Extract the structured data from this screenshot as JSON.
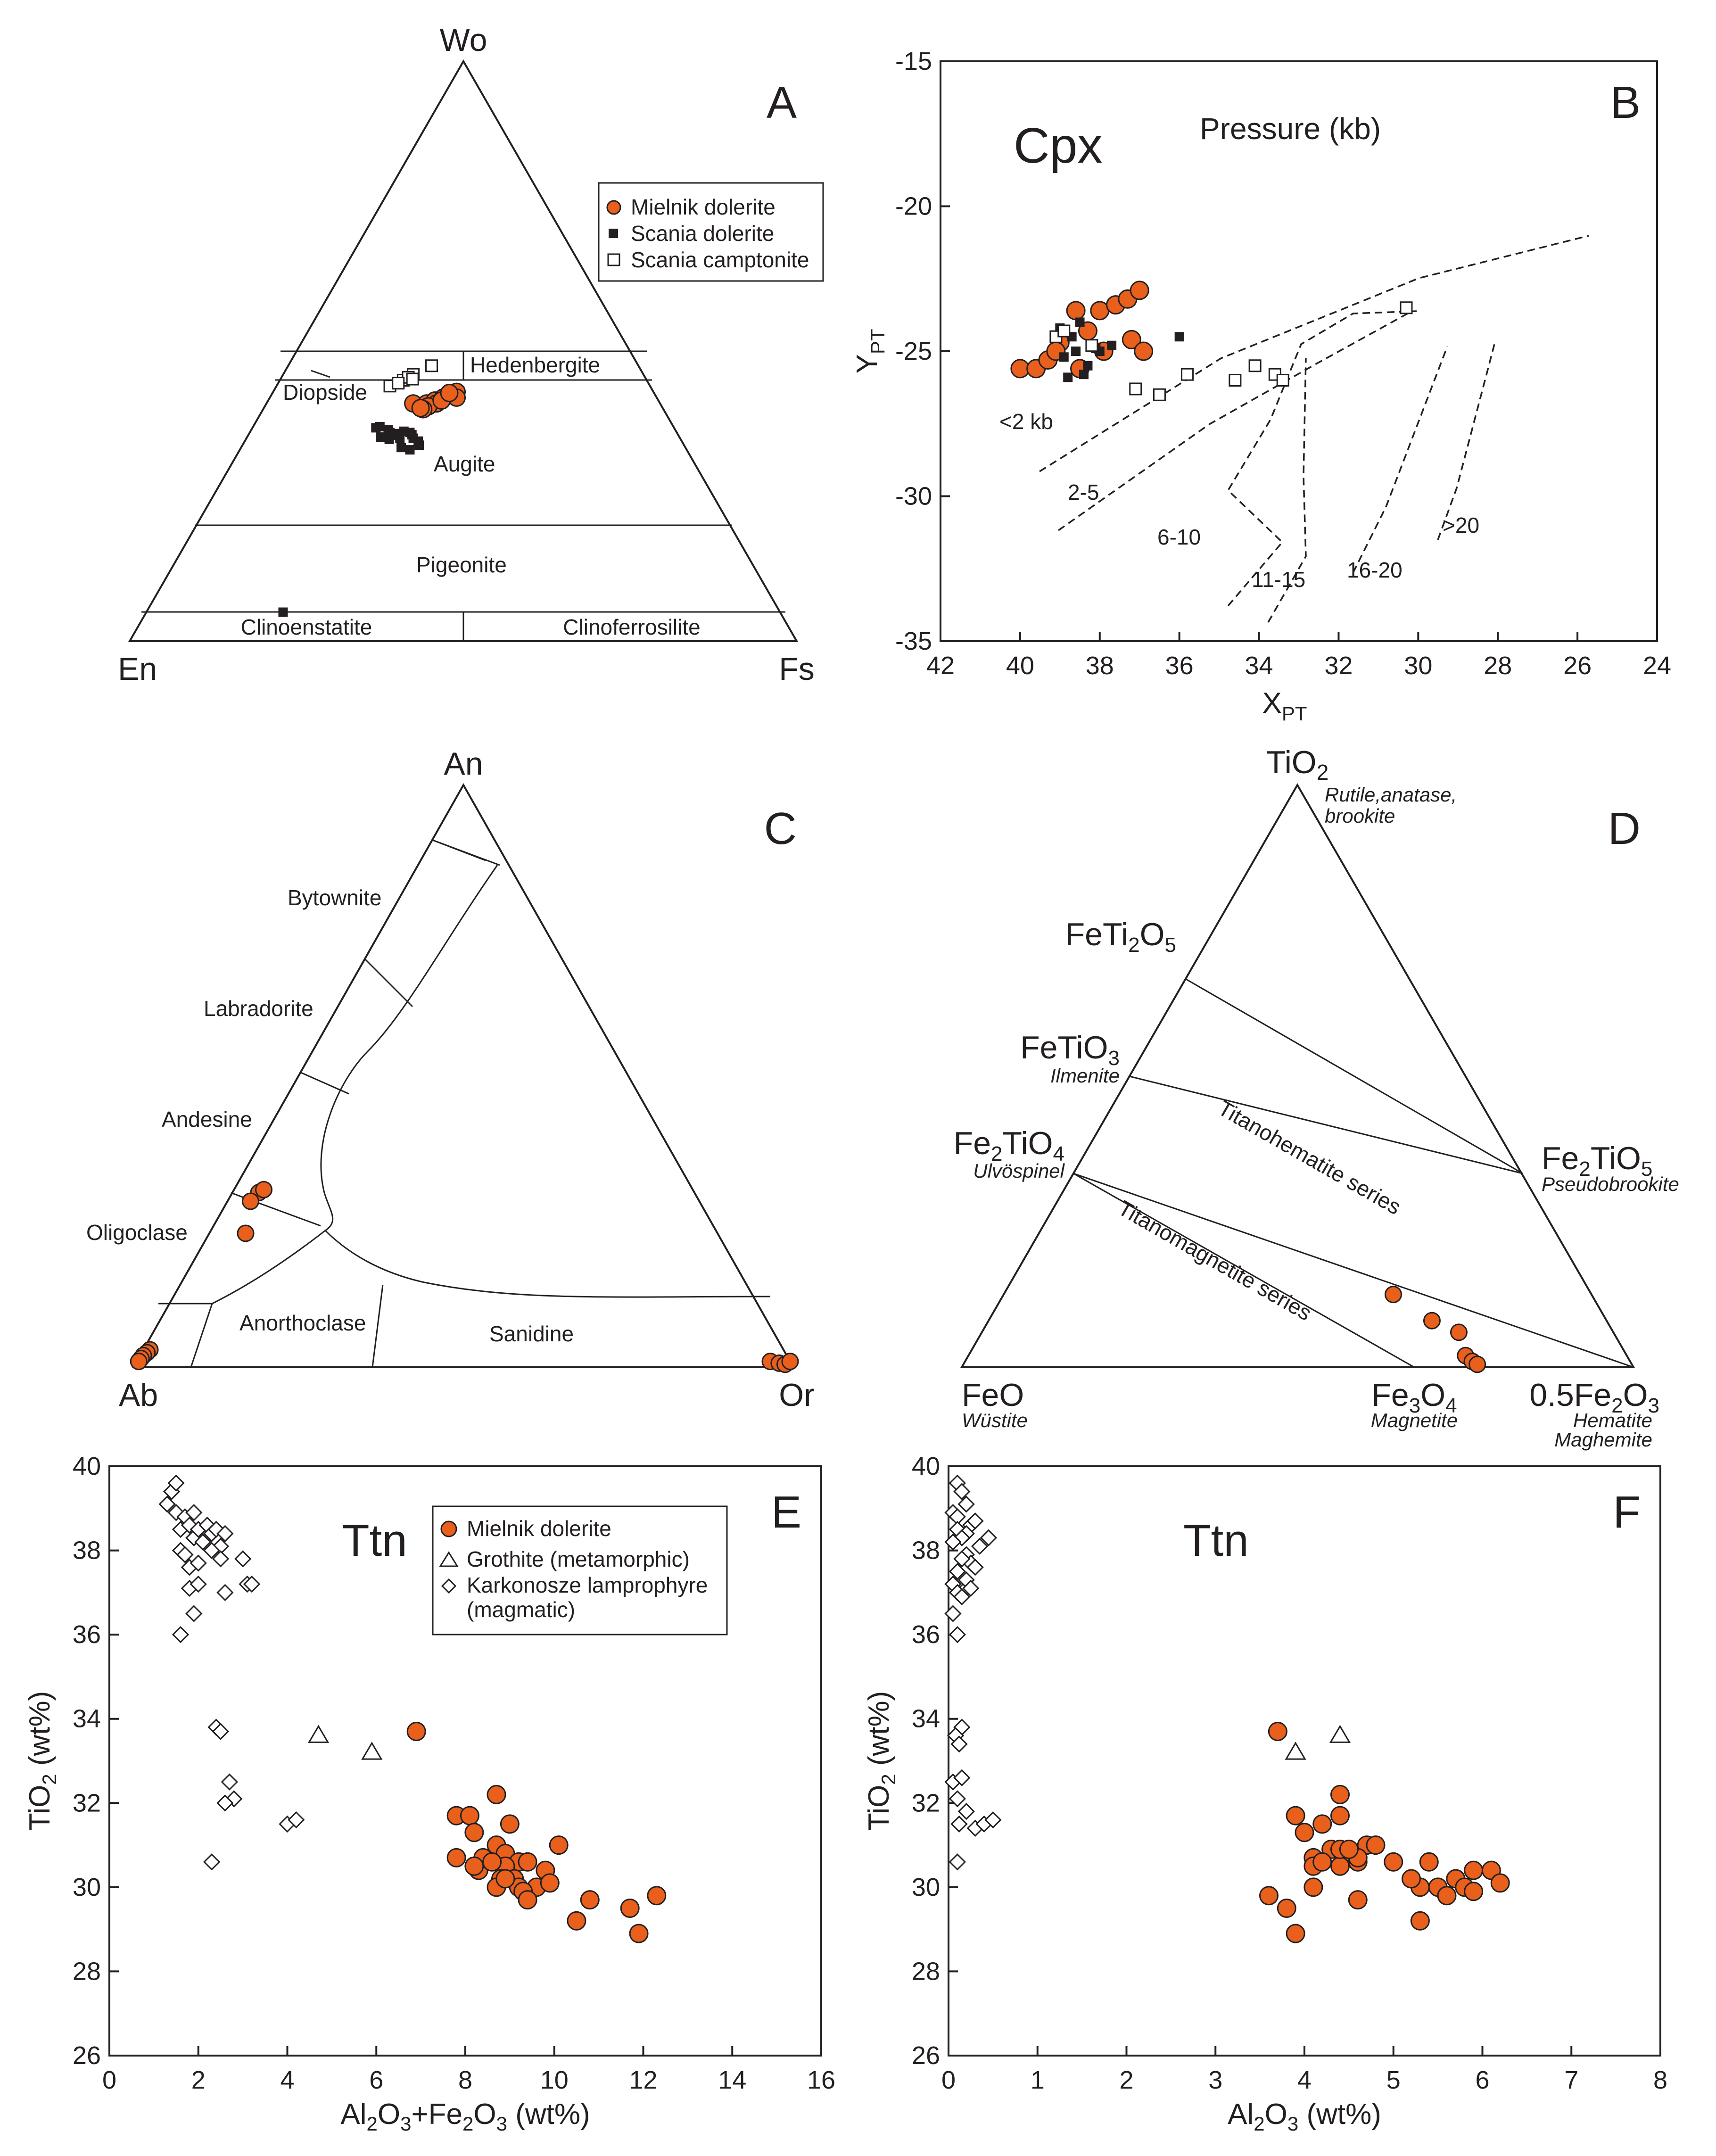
{
  "colors": {
    "mielnik": "#e8601c",
    "ink": "#231f20",
    "background": "#ffffff"
  },
  "panelA": {
    "letter": "A",
    "apex_top": "Wo",
    "apex_left": "En",
    "apex_right": "Fs",
    "legend": [
      "Mielnik dolerite",
      "Scania dolerite",
      "Scania camptonite"
    ],
    "fields": {
      "hedenbergite": "Hedenbergite",
      "diopside": "Diopside",
      "augite": "Augite",
      "pigeonite": "Pigeonite",
      "clinoenstatite": "Clinoenstatite",
      "clinoferrosilite": "Clinoferrosilite"
    }
  },
  "panelB": {
    "letter": "B",
    "mineral": "Cpx",
    "pressure_title": "Pressure (kb)",
    "xlabel": "X",
    "xlabel_sub": "PT",
    "ylabel": "Y",
    "ylabel_sub": "PT",
    "xticks": [
      "42",
      "40",
      "38",
      "36",
      "34",
      "32",
      "30",
      "28",
      "26",
      "24"
    ],
    "yticks": [
      "-15",
      "-20",
      "-25",
      "-30",
      "-35"
    ],
    "zones": [
      "<2 kb",
      "2-5",
      "6-10",
      "11-15",
      "16-20",
      ">20"
    ]
  },
  "panelC": {
    "letter": "C",
    "apex_top": "An",
    "apex_left": "Ab",
    "apex_right": "Or",
    "fields": {
      "bytownite": "Bytownite",
      "labradorite": "Labradorite",
      "andesine": "Andesine",
      "oligoclase": "Oligoclase",
      "anorthoclase": "Anorthoclase",
      "sanidine": "Sanidine"
    }
  },
  "panelD": {
    "letter": "D",
    "top": {
      "pre": "TiO",
      "sub": "2",
      "mineral": "Rutile,anatase,",
      "mineral2": "brookite"
    },
    "feti2o5": {
      "a": "FeTi",
      "b": "2",
      "c": "O",
      "d": "5"
    },
    "fetio3": {
      "a": "FeTiO",
      "b": "3",
      "mineral": "Ilmenite"
    },
    "fe2tio4": {
      "a": "Fe",
      "b": "2",
      "c": "TiO",
      "d": "4",
      "mineral": "Ulvöspinel"
    },
    "fe2tio5": {
      "a": "Fe",
      "b": "2",
      "c": "TiO",
      "d": "5",
      "mineral": "Pseudobrookite"
    },
    "feo": {
      "a": "FeO",
      "mineral": "Wüstite"
    },
    "fe3o4": {
      "a": "Fe",
      "b": "3",
      "c": "O",
      "d": "4",
      "mineral": "Magnetite"
    },
    "fe2o3": {
      "a": "0.5Fe",
      "b": "2",
      "c": "O",
      "d": "3",
      "mineral": "Hematite",
      "mineral2": "Maghemite"
    },
    "series": {
      "titanohematite": "Titanohematite series",
      "titanomagnetite": "Titanomagnetite series"
    }
  },
  "panelE": {
    "letter": "E",
    "mineral": "Ttn",
    "xlabel": {
      "a": "Al",
      "b": "2",
      "c": "O",
      "d": "3",
      "e": "+Fe",
      "f": "2",
      "g": "O",
      "h": "3",
      "i": " (wt%)"
    },
    "ylabel": {
      "a": "TiO",
      "b": "2",
      "c": " (wt%)"
    },
    "xticks": [
      "0",
      "2",
      "4",
      "6",
      "8",
      "10",
      "12",
      "14",
      "16"
    ],
    "yticks": [
      "26",
      "28",
      "30",
      "32",
      "34",
      "36",
      "38",
      "40"
    ],
    "legend": [
      "Mielnik dolerite",
      "Grothite (metamorphic)",
      "Karkonosze lamprophyre",
      "(magmatic)"
    ]
  },
  "panelF": {
    "letter": "F",
    "mineral": "Ttn",
    "xlabel": {
      "a": "Al",
      "b": "2",
      "c": "O",
      "d": "3",
      "e": " (wt%)"
    },
    "ylabel": {
      "a": "TiO",
      "b": "2",
      "c": " (wt%)"
    },
    "xticks": [
      "0",
      "1",
      "2",
      "3",
      "4",
      "5",
      "6",
      "7",
      "8"
    ],
    "yticks": [
      "26",
      "28",
      "30",
      "32",
      "34",
      "36",
      "38",
      "40"
    ]
  },
  "chart_data": [
    {
      "type": "scatter",
      "panel": "A",
      "diagram": "pyroxene quadrilateral Wo-En-Fs",
      "series": [
        {
          "name": "Mielnik dolerite",
          "points_wo_fs": [
            [
              41,
              22
            ],
            [
              41,
              24
            ],
            [
              41.5,
              25
            ],
            [
              42,
              26
            ],
            [
              41,
              25.5
            ],
            [
              40.5,
              24.5
            ],
            [
              40,
              24
            ],
            [
              42.5,
              27
            ],
            [
              43,
              27.5
            ],
            [
              42,
              28
            ],
            [
              41.5,
              26
            ],
            [
              40.2,
              23.5
            ],
            [
              42.8,
              26.5
            ]
          ]
        },
        {
          "name": "Scania dolerite",
          "points_wo_fs": [
            [
              37,
              19
            ],
            [
              36.5,
              20.5
            ],
            [
              36,
              21
            ],
            [
              35.8,
              22
            ],
            [
              35,
              23
            ],
            [
              36,
              24
            ],
            [
              35.6,
              24.5
            ],
            [
              36.2,
              23
            ],
            [
              34.5,
              26
            ],
            [
              33.8,
              26.5
            ],
            [
              33,
              25.5
            ],
            [
              35.2,
              20
            ],
            [
              34.8,
              21.5
            ],
            [
              36.8,
              18.5
            ],
            [
              35.5,
              22.5
            ],
            [
              33.4,
              24
            ],
            [
              35,
              25
            ],
            [
              5,
              20.5
            ]
          ]
        },
        {
          "name": "Scania camptonite",
          "points_wo_fs": [
            [
              44,
              17
            ],
            [
              45,
              18.5
            ],
            [
              46,
              19.5
            ],
            [
              47.5,
              21.5
            ],
            [
              45.5,
              19
            ],
            [
              44.5,
              18
            ],
            [
              45.2,
              19.8
            ]
          ]
        }
      ]
    },
    {
      "type": "scatter",
      "panel": "B",
      "title": "Cpx",
      "xlabel": "XPT",
      "ylabel": "YPT",
      "xlim": [
        42,
        24
      ],
      "ylim": [
        -35,
        -15
      ],
      "series": [
        {
          "name": "Mielnik dolerite",
          "x": [
            40,
            39.6,
            39.3,
            39,
            38.6,
            38.3,
            38,
            37.6,
            37.3,
            37,
            37.2,
            36.9,
            38.5,
            37.9,
            39.1
          ],
          "y": [
            -25.6,
            -25.6,
            -25.3,
            -24.7,
            -23.6,
            -24.3,
            -23.6,
            -23.4,
            -23.2,
            -22.9,
            -24.6,
            -25,
            -25.6,
            -25,
            -25
          ]
        },
        {
          "name": "Scania dolerite",
          "x": [
            39,
            38.7,
            38.5,
            38.2,
            38,
            37.7,
            38.9,
            38.6,
            38.3,
            38.8,
            38.4,
            38.1,
            36
          ],
          "y": [
            -24.2,
            -24.5,
            -24,
            -24.8,
            -25,
            -24.8,
            -25.2,
            -25,
            -25.5,
            -25.9,
            -25.8,
            -24.9,
            -24.5
          ]
        },
        {
          "name": "Scania camptonite",
          "x": [
            39.1,
            38.9,
            38.2,
            37.1,
            36.5,
            35.8,
            34.6,
            34.1,
            33.6,
            33.4,
            30.3
          ],
          "y": [
            -24.5,
            -24.3,
            -24.8,
            -26.3,
            -26.5,
            -25.8,
            -26,
            -25.5,
            -25.8,
            -26,
            -23.5
          ]
        }
      ],
      "pressure_zones": [
        "<2 kb",
        "2-5",
        "6-10",
        "11-15",
        "16-20",
        ">20"
      ]
    },
    {
      "type": "scatter",
      "panel": "C",
      "diagram": "feldspar ternary An-Ab-Or",
      "series": [
        {
          "name": "Mielnik dolerite",
          "points_an_or": [
            [
              30,
              4
            ],
            [
              28.5,
              3.5
            ],
            [
              30.5,
              4.5
            ],
            [
              23,
              5.5
            ],
            [
              3,
              1
            ],
            [
              2.5,
              0.8
            ],
            [
              2,
              0.5
            ],
            [
              1.5,
              0.4
            ],
            [
              1,
              0.3
            ],
            [
              1,
              96
            ],
            [
              0.7,
              97.5
            ],
            [
              0.5,
              98.5
            ],
            [
              1,
              99
            ]
          ]
        }
      ]
    },
    {
      "type": "scatter",
      "panel": "D",
      "diagram": "TiO2-FeO-0.5Fe2O3 ternary",
      "series": [
        {
          "name": "Mielnik dolerite",
          "points_ti_fe3": [
            [
              12.5,
              58
            ],
            [
              8,
              66
            ],
            [
              6,
              71
            ],
            [
              2,
              74
            ],
            [
              1,
              75.5
            ],
            [
              0.5,
              76.5
            ]
          ]
        }
      ]
    },
    {
      "type": "scatter",
      "panel": "E",
      "title": "Ttn",
      "xlabel": "Al2O3+Fe2O3 (wt%)",
      "ylabel": "TiO2 (wt%)",
      "xlim": [
        0,
        16
      ],
      "ylim": [
        26,
        40
      ],
      "series": [
        {
          "name": "Mielnik dolerite",
          "x": [
            6.9,
            7.8,
            8.1,
            8.7,
            8.2,
            7.8,
            8.4,
            8.7,
            9.0,
            8.9,
            9.2,
            8.9,
            8.3,
            8.6,
            9.4,
            8.8,
            9.1,
            9.8,
            10.1,
            8.2,
            8.7,
            9.2,
            9.6,
            8.9,
            9.3,
            9.9,
            9.4,
            10.5,
            10.8,
            11.7,
            11.9,
            12.3
          ],
          "y": [
            33.7,
            31.7,
            31.7,
            32.2,
            31.3,
            30.7,
            30.7,
            31.0,
            31.5,
            30.8,
            30.6,
            30.5,
            30.4,
            30.6,
            30.6,
            30.2,
            30.2,
            30.4,
            31.0,
            30.5,
            30.0,
            30.0,
            30.0,
            30.2,
            29.9,
            30.1,
            29.7,
            29.2,
            29.7,
            29.5,
            28.9,
            29.8
          ]
        },
        {
          "name": "Grothite (metamorphic)",
          "x": [
            4.7,
            5.9
          ],
          "y": [
            33.6,
            33.2
          ]
        },
        {
          "name": "Karkonosze lamprophyre (magmatic)",
          "x": [
            1.3,
            1.4,
            1.5,
            1.5,
            1.6,
            1.7,
            1.8,
            1.9,
            1.9,
            2.0,
            2.1,
            2.2,
            2.3,
            2.4,
            2.5,
            2.6,
            1.6,
            1.7,
            1.8,
            2.0,
            2.3,
            2.5,
            3.0,
            3.1,
            3.2,
            1.8,
            2.0,
            2.6,
            1.9,
            1.6,
            2.4,
            2.5,
            2.7,
            2.8,
            2.6,
            4.0,
            4.2,
            2.3
          ],
          "y": [
            39.1,
            39.4,
            39.6,
            38.9,
            38.5,
            38.8,
            38.6,
            38.9,
            38.3,
            38.5,
            38.2,
            38.6,
            38.4,
            38.5,
            38.1,
            38.4,
            38.0,
            37.9,
            37.6,
            37.7,
            38.0,
            37.8,
            37.8,
            37.2,
            37.2,
            37.1,
            37.2,
            37.0,
            36.5,
            36.0,
            33.8,
            33.7,
            32.5,
            32.1,
            32.0,
            31.5,
            31.6,
            30.6
          ]
        }
      ]
    },
    {
      "type": "scatter",
      "panel": "F",
      "title": "Ttn",
      "xlabel": "Al2O3 (wt%)",
      "ylabel": "TiO2 (wt%)",
      "xlim": [
        0,
        8
      ],
      "ylim": [
        26,
        40
      ],
      "series": [
        {
          "name": "Mielnik dolerite",
          "x": [
            3.7,
            4.4,
            3.9,
            4.4,
            4.0,
            4.2,
            4.5,
            4.7,
            4.1,
            4.3,
            4.1,
            4.4,
            4.6,
            4.4,
            4.6,
            4.2,
            4.5,
            4.8,
            5.0,
            4.1,
            3.6,
            3.8,
            3.9,
            5.4,
            5.7,
            5.9,
            6.1,
            5.3,
            5.2,
            5.5,
            5.8,
            6.2,
            5.6,
            5.9,
            4.6,
            5.3
          ],
          "y": [
            33.7,
            32.2,
            31.7,
            31.7,
            31.3,
            31.5,
            30.7,
            31.0,
            30.7,
            30.9,
            30.5,
            30.5,
            30.6,
            30.9,
            30.7,
            30.6,
            30.9,
            31.0,
            30.6,
            30.0,
            29.8,
            29.5,
            28.9,
            30.6,
            30.2,
            30.4,
            30.4,
            30.0,
            30.2,
            30.0,
            30.0,
            30.1,
            29.8,
            29.9,
            29.7,
            29.2
          ]
        },
        {
          "name": "Grothite (metamorphic)",
          "x": [
            3.9,
            4.4
          ],
          "y": [
            33.2,
            33.6
          ]
        },
        {
          "name": "Karkonosze lamprophyre (magmatic)",
          "x": [
            0.1,
            0.15,
            0.2,
            0.05,
            0.1,
            0.25,
            0.3,
            0.1,
            0.2,
            0.15,
            0.05,
            0.35,
            0.45,
            0.2,
            0.25,
            0.15,
            0.1,
            0.3,
            0.2,
            0.05,
            0.1,
            0.15,
            0.2,
            0.25,
            0.05,
            0.1,
            0.15,
            0.08,
            0.12,
            0.05,
            0.1,
            0.15,
            0.2,
            0.12,
            0.3,
            0.4,
            0.5,
            0.1
          ],
          "y": [
            39.6,
            39.4,
            39.1,
            38.9,
            38.8,
            38.6,
            38.7,
            38.5,
            38.4,
            38.3,
            38.2,
            38.1,
            38.3,
            37.9,
            37.7,
            37.8,
            37.5,
            37.6,
            37.1,
            37.2,
            37.0,
            36.9,
            37.3,
            37.1,
            36.5,
            36.0,
            33.8,
            33.6,
            33.4,
            32.5,
            32.1,
            32.6,
            31.8,
            31.5,
            31.4,
            31.5,
            31.6,
            30.6
          ]
        }
      ]
    }
  ]
}
